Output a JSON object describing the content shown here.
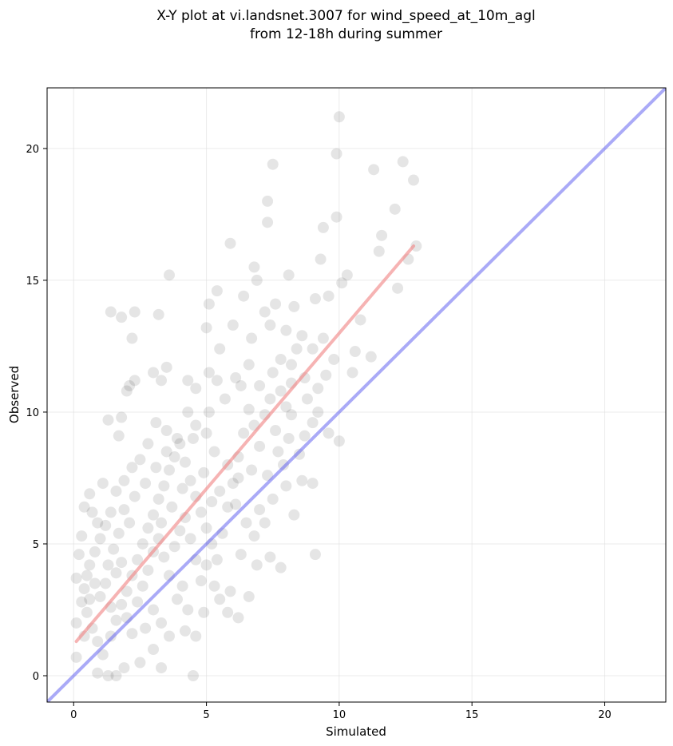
{
  "chart_data": {
    "type": "scatter",
    "title_line1": "X-Y plot at vi.landsnet.3007 for wind_speed_at_10m_agl",
    "title_line2": "from 12-18h during summer",
    "xlabel": "Simulated",
    "ylabel": "Observed",
    "xlim": [
      -1.0,
      22.3
    ],
    "ylim": [
      -1.0,
      22.3
    ],
    "xticks": [
      0,
      5,
      10,
      15,
      20
    ],
    "yticks": [
      0,
      5,
      10,
      15,
      20
    ],
    "grid": true,
    "colors": {
      "points": "#000000",
      "fit_line": "#f08080",
      "one_to_one": "#6464f0",
      "grid": "#dddddd"
    },
    "fit_line": {
      "x": [
        0.1,
        12.8
      ],
      "y": [
        1.3,
        16.3
      ]
    },
    "one_to_one_line": {
      "x": [
        -1.0,
        22.3
      ],
      "y": [
        -1.0,
        22.3
      ]
    },
    "points": [
      [
        10.0,
        21.2
      ],
      [
        11.3,
        19.2
      ],
      [
        12.4,
        19.5
      ],
      [
        12.8,
        18.8
      ],
      [
        9.9,
        19.8
      ],
      [
        7.5,
        19.4
      ],
      [
        12.1,
        17.7
      ],
      [
        11.6,
        16.7
      ],
      [
        9.4,
        17.0
      ],
      [
        9.9,
        17.4
      ],
      [
        7.3,
        18.0
      ],
      [
        7.3,
        17.2
      ],
      [
        5.9,
        16.4
      ],
      [
        12.6,
        15.8
      ],
      [
        12.9,
        16.3
      ],
      [
        12.2,
        14.7
      ],
      [
        10.1,
        14.9
      ],
      [
        10.3,
        15.2
      ],
      [
        11.5,
        16.1
      ],
      [
        9.3,
        15.8
      ],
      [
        9.6,
        14.4
      ],
      [
        8.1,
        15.2
      ],
      [
        6.8,
        15.5
      ],
      [
        6.9,
        15.0
      ],
      [
        3.6,
        15.2
      ],
      [
        1.4,
        13.8
      ],
      [
        1.8,
        13.6
      ],
      [
        2.3,
        13.8
      ],
      [
        3.2,
        13.7
      ],
      [
        5.1,
        14.1
      ],
      [
        5.4,
        14.6
      ],
      [
        6.4,
        14.4
      ],
      [
        7.2,
        13.8
      ],
      [
        7.6,
        14.1
      ],
      [
        8.3,
        14.0
      ],
      [
        9.1,
        14.3
      ],
      [
        10.8,
        13.5
      ],
      [
        11.2,
        12.1
      ],
      [
        10.6,
        12.3
      ],
      [
        9.8,
        12.0
      ],
      [
        9.0,
        12.4
      ],
      [
        8.6,
        12.9
      ],
      [
        8.0,
        13.1
      ],
      [
        7.4,
        13.3
      ],
      [
        6.7,
        12.8
      ],
      [
        6.0,
        13.3
      ],
      [
        5.5,
        12.4
      ],
      [
        5.0,
        13.2
      ],
      [
        2.2,
        12.8
      ],
      [
        2.3,
        11.2
      ],
      [
        2.1,
        11.0
      ],
      [
        2.0,
        10.8
      ],
      [
        3.0,
        11.5
      ],
      [
        3.5,
        11.7
      ],
      [
        3.3,
        11.2
      ],
      [
        4.3,
        11.2
      ],
      [
        4.6,
        10.9
      ],
      [
        5.1,
        11.5
      ],
      [
        5.4,
        11.2
      ],
      [
        6.1,
        11.3
      ],
      [
        6.6,
        11.8
      ],
      [
        7.0,
        11.0
      ],
      [
        7.5,
        11.5
      ],
      [
        7.8,
        12.0
      ],
      [
        8.2,
        11.1
      ],
      [
        8.7,
        11.3
      ],
      [
        9.2,
        10.9
      ],
      [
        9.5,
        11.4
      ],
      [
        10.5,
        11.5
      ],
      [
        10.0,
        8.9
      ],
      [
        9.6,
        9.2
      ],
      [
        9.0,
        9.6
      ],
      [
        8.7,
        9.1
      ],
      [
        8.2,
        9.9
      ],
      [
        8.5,
        8.4
      ],
      [
        7.9,
        8.0
      ],
      [
        8.6,
        7.4
      ],
      [
        9.0,
        7.3
      ],
      [
        8.3,
        6.1
      ],
      [
        7.8,
        4.1
      ],
      [
        7.4,
        4.5
      ],
      [
        6.9,
        4.2
      ],
      [
        6.6,
        3.0
      ],
      [
        6.2,
        2.2
      ],
      [
        5.8,
        2.4
      ],
      [
        9.1,
        4.6
      ],
      [
        4.5,
        0.0
      ],
      [
        1.3,
        9.7
      ],
      [
        1.7,
        9.1
      ],
      [
        1.8,
        9.8
      ],
      [
        1.1,
        7.3
      ],
      [
        0.6,
        6.9
      ],
      [
        0.4,
        6.4
      ],
      [
        0.7,
        6.2
      ],
      [
        0.9,
        5.8
      ],
      [
        0.3,
        5.3
      ],
      [
        0.2,
        4.6
      ],
      [
        0.1,
        3.7
      ],
      [
        0.1,
        2.0
      ],
      [
        0.1,
        0.7
      ],
      [
        0.9,
        0.1
      ],
      [
        1.3,
        0.0
      ],
      [
        1.6,
        0.0
      ],
      [
        1.9,
        0.3
      ],
      [
        2.5,
        0.5
      ],
      [
        3.0,
        1.0
      ],
      [
        3.3,
        0.3
      ],
      [
        3.6,
        1.5
      ],
      [
        4.2,
        1.7
      ],
      [
        4.6,
        1.5
      ],
      [
        4.9,
        2.4
      ],
      [
        5.3,
        3.4
      ],
      [
        5.5,
        2.9
      ],
      [
        5.9,
        3.2
      ],
      [
        6.3,
        4.6
      ],
      [
        6.8,
        5.3
      ],
      [
        7.2,
        5.8
      ],
      [
        7.5,
        6.7
      ],
      [
        8.0,
        7.2
      ],
      [
        7.3,
        7.6
      ],
      [
        6.7,
        7.8
      ],
      [
        6.2,
        7.5
      ],
      [
        5.8,
        8.0
      ],
      [
        5.3,
        8.5
      ],
      [
        5.0,
        9.2
      ],
      [
        4.6,
        9.5
      ],
      [
        4.3,
        10.0
      ],
      [
        3.9,
        9.0
      ],
      [
        3.5,
        9.3
      ],
      [
        3.1,
        9.6
      ],
      [
        2.8,
        8.8
      ],
      [
        2.5,
        8.2
      ],
      [
        2.2,
        7.9
      ],
      [
        1.9,
        7.4
      ],
      [
        1.6,
        7.0
      ],
      [
        1.4,
        6.2
      ],
      [
        1.2,
        5.7
      ],
      [
        1.0,
        5.2
      ],
      [
        0.8,
        4.7
      ],
      [
        0.6,
        4.2
      ],
      [
        0.5,
        3.8
      ],
      [
        0.4,
        3.3
      ],
      [
        0.3,
        2.8
      ],
      [
        0.5,
        2.4
      ],
      [
        0.7,
        1.8
      ],
      [
        0.9,
        1.3
      ],
      [
        1.1,
        0.8
      ],
      [
        1.4,
        1.5
      ],
      [
        1.6,
        2.1
      ],
      [
        1.8,
        2.7
      ],
      [
        2.0,
        3.2
      ],
      [
        2.2,
        3.8
      ],
      [
        2.4,
        4.4
      ],
      [
        2.6,
        5.0
      ],
      [
        2.8,
        5.6
      ],
      [
        3.0,
        6.1
      ],
      [
        3.2,
        6.7
      ],
      [
        3.4,
        7.2
      ],
      [
        3.6,
        7.8
      ],
      [
        3.8,
        8.3
      ],
      [
        4.0,
        8.8
      ],
      [
        4.2,
        8.1
      ],
      [
        4.4,
        7.4
      ],
      [
        4.6,
        6.8
      ],
      [
        4.8,
        6.2
      ],
      [
        5.0,
        5.6
      ],
      [
        5.2,
        5.0
      ],
      [
        5.4,
        4.4
      ],
      [
        5.6,
        5.4
      ],
      [
        5.8,
        6.4
      ],
      [
        6.0,
        7.3
      ],
      [
        6.2,
        8.3
      ],
      [
        6.4,
        9.2
      ],
      [
        6.6,
        10.1
      ],
      [
        6.8,
        9.5
      ],
      [
        7.0,
        8.7
      ],
      [
        7.2,
        9.9
      ],
      [
        7.4,
        10.5
      ],
      [
        7.6,
        9.3
      ],
      [
        7.8,
        10.8
      ],
      [
        8.0,
        10.2
      ],
      [
        8.2,
        11.8
      ],
      [
        8.4,
        12.4
      ],
      [
        8.8,
        10.5
      ],
      [
        9.2,
        10.0
      ],
      [
        9.4,
        12.8
      ],
      [
        1.0,
        3.0
      ],
      [
        1.2,
        3.5
      ],
      [
        1.4,
        2.6
      ],
      [
        1.6,
        3.9
      ],
      [
        1.8,
        4.3
      ],
      [
        2.0,
        2.2
      ],
      [
        2.2,
        1.6
      ],
      [
        2.4,
        2.8
      ],
      [
        2.6,
        3.4
      ],
      [
        2.8,
        4.0
      ],
      [
        3.0,
        4.7
      ],
      [
        3.2,
        5.2
      ],
      [
        3.4,
        4.5
      ],
      [
        3.6,
        3.8
      ],
      [
        3.8,
        4.9
      ],
      [
        4.0,
        5.5
      ],
      [
        4.2,
        6.0
      ],
      [
        4.4,
        5.2
      ],
      [
        4.6,
        4.4
      ],
      [
        4.8,
        3.6
      ],
      [
        5.0,
        4.2
      ],
      [
        3.0,
        2.5
      ],
      [
        2.7,
        1.8
      ],
      [
        3.3,
        2.0
      ],
      [
        3.9,
        2.9
      ],
      [
        4.1,
        3.4
      ],
      [
        4.3,
        2.5
      ],
      [
        2.1,
        5.8
      ],
      [
        1.7,
        5.4
      ],
      [
        1.5,
        4.8
      ],
      [
        1.3,
        4.2
      ],
      [
        0.8,
        3.5
      ],
      [
        0.6,
        2.9
      ],
      [
        0.4,
        1.5
      ],
      [
        1.9,
        6.3
      ],
      [
        2.3,
        6.8
      ],
      [
        2.7,
        7.3
      ],
      [
        3.1,
        7.9
      ],
      [
        3.5,
        8.5
      ],
      [
        4.5,
        9.0
      ],
      [
        5.1,
        10.0
      ],
      [
        5.7,
        10.5
      ],
      [
        6.3,
        11.0
      ],
      [
        4.9,
        7.7
      ],
      [
        5.5,
        7.0
      ],
      [
        6.1,
        6.5
      ],
      [
        6.5,
        5.8
      ],
      [
        7.0,
        6.3
      ],
      [
        7.7,
        8.5
      ],
      [
        8.1,
        9.0
      ],
      [
        5.2,
        6.6
      ],
      [
        4.1,
        7.1
      ],
      [
        3.7,
        6.4
      ],
      [
        3.3,
        5.8
      ]
    ]
  }
}
